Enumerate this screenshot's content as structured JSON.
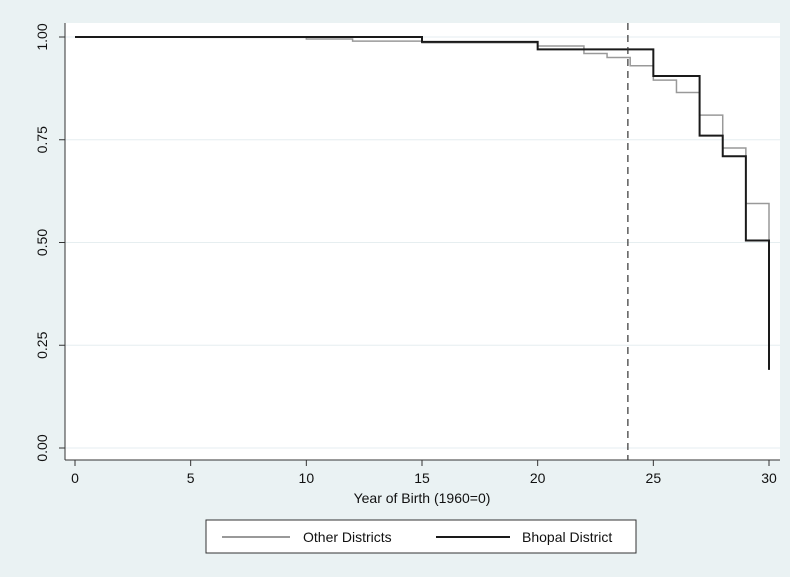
{
  "chart_data": {
    "type": "line",
    "title": "",
    "xlabel": "Year of Birth (1960=0)",
    "ylabel": "",
    "xlim": [
      0,
      30
    ],
    "ylim": [
      0,
      1
    ],
    "x_ticks": [
      0,
      5,
      10,
      15,
      20,
      25,
      30
    ],
    "y_ticks": [
      0,
      0.25,
      0.5,
      0.75,
      1
    ],
    "y_tick_labels": [
      "0.00",
      "0.25",
      "0.50",
      "0.75",
      "1.00"
    ],
    "grid": "horizontal",
    "legend_position": "bottom",
    "reference_line": {
      "x": 23.9,
      "style": "dashed"
    },
    "colors": {
      "background": "#eaf2f3",
      "plot_bg": "#ffffff",
      "other": "#999999",
      "bhopal": "#1a1a1a",
      "grid": "#e6eef0"
    },
    "series": [
      {
        "name": "Other Districts",
        "step": true,
        "points": [
          [
            0,
            1.0
          ],
          [
            5,
            0.999
          ],
          [
            10,
            0.995
          ],
          [
            12,
            0.99
          ],
          [
            15,
            0.986
          ],
          [
            20,
            0.978
          ],
          [
            22,
            0.96
          ],
          [
            23,
            0.95
          ],
          [
            24,
            0.93
          ],
          [
            25,
            0.895
          ],
          [
            26,
            0.865
          ],
          [
            27,
            0.81
          ],
          [
            28,
            0.73
          ],
          [
            29,
            0.595
          ],
          [
            30,
            0.2
          ]
        ]
      },
      {
        "name": "Bhopal District",
        "step": true,
        "points": [
          [
            0,
            1.0
          ],
          [
            15,
            0.988
          ],
          [
            20,
            0.97
          ],
          [
            25,
            0.905
          ],
          [
            27,
            0.76
          ],
          [
            28,
            0.71
          ],
          [
            29,
            0.505
          ],
          [
            30,
            0.19
          ]
        ]
      }
    ]
  }
}
